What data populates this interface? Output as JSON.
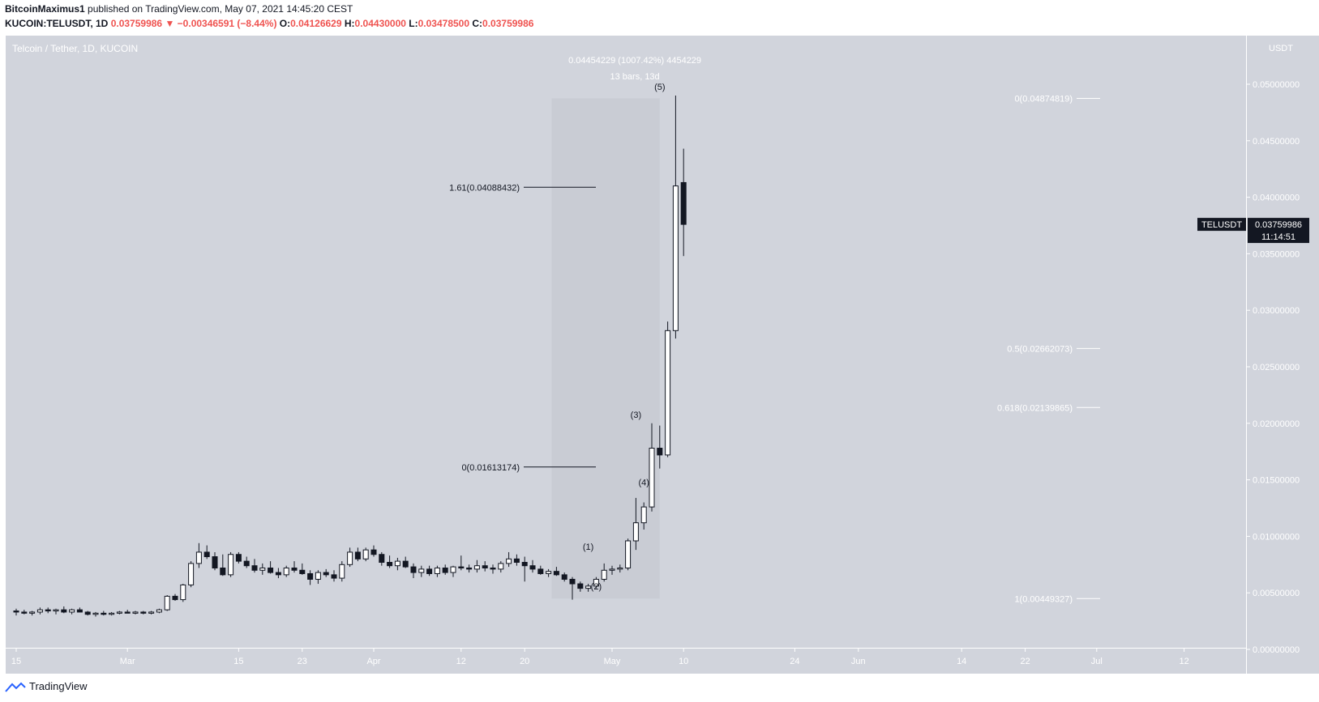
{
  "header": {
    "author": "BitcoinMaximus1",
    "published_text": "published on TradingView.com, May 07, 2021 14:45:20 CEST",
    "symbol_text": "KUCOIN:TELUSDT, 1D",
    "last": "0.03759986",
    "arrow": "▼",
    "change": "−0.00346591 (−8.44%)",
    "o_label": "O:",
    "o_value": "0.04126629",
    "h_label": "H:",
    "h_value": "0.04430000",
    "l_label": "L:",
    "l_value": "0.03478500",
    "c_label": "C:",
    "c_value": "0.03759986"
  },
  "footer": {
    "brand": "TradingView"
  },
  "colors": {
    "pane": "#d1d4dc",
    "up": "#ffffff",
    "down": "#131722",
    "label": "#131722",
    "fib_line": "#131722",
    "fib_line_right": "#ffffff",
    "range_box": "#c3c6ce"
  },
  "chart_data": {
    "type": "candlestick",
    "title": "Telcoin / Tether, 1D, KUCOIN",
    "y_axis_unit": "USDT",
    "ylim": [
      0,
      0.05
    ],
    "y_ticks": [
      "0.05000000",
      "0.04500000",
      "0.04000000",
      "0.03500000",
      "0.03000000",
      "0.02500000",
      "0.02000000",
      "0.01500000",
      "0.01000000",
      "0.00500000",
      "0.00000000"
    ],
    "x_ticks": [
      {
        "label": "15",
        "date": "2021-02-15"
      },
      {
        "label": "Mar",
        "date": "2021-03-01"
      },
      {
        "label": "15",
        "date": "2021-03-15"
      },
      {
        "label": "23",
        "date": "2021-03-23"
      },
      {
        "label": "Apr",
        "date": "2021-04-01"
      },
      {
        "label": "12",
        "date": "2021-04-12"
      },
      {
        "label": "20",
        "date": "2021-04-20"
      },
      {
        "label": "May",
        "date": "2021-05-01"
      },
      {
        "label": "10",
        "date": "2021-05-10"
      },
      {
        "label": "24",
        "date": "2021-05-24"
      },
      {
        "label": "Jun",
        "date": "2021-06-01"
      },
      {
        "label": "14",
        "date": "2021-06-14"
      },
      {
        "label": "22",
        "date": "2021-06-22"
      },
      {
        "label": "Jul",
        "date": "2021-07-01"
      },
      {
        "label": "12",
        "date": "2021-07-12"
      }
    ],
    "first_date": "2021-02-15",
    "candles": [
      [
        0.0034,
        0.0036,
        0.003,
        0.0033
      ],
      [
        0.0033,
        0.0035,
        0.0031,
        0.0032
      ],
      [
        0.0032,
        0.0034,
        0.003,
        0.0033
      ],
      [
        0.0033,
        0.0037,
        0.0031,
        0.0035
      ],
      [
        0.0035,
        0.0037,
        0.0032,
        0.0034
      ],
      [
        0.0034,
        0.0036,
        0.0031,
        0.0035
      ],
      [
        0.0035,
        0.0038,
        0.0032,
        0.0033
      ],
      [
        0.0033,
        0.0036,
        0.0031,
        0.0035
      ],
      [
        0.0035,
        0.0037,
        0.0033,
        0.0033
      ],
      [
        0.0033,
        0.0034,
        0.003,
        0.0031
      ],
      [
        0.0031,
        0.0033,
        0.0029,
        0.0032
      ],
      [
        0.0032,
        0.0034,
        0.003,
        0.0031
      ],
      [
        0.0031,
        0.0033,
        0.003,
        0.0032
      ],
      [
        0.0032,
        0.0034,
        0.0031,
        0.0033
      ],
      [
        0.0033,
        0.0035,
        0.0032,
        0.0032
      ],
      [
        0.0032,
        0.0034,
        0.0031,
        0.0033
      ],
      [
        0.0033,
        0.0034,
        0.0031,
        0.0032
      ],
      [
        0.0032,
        0.0034,
        0.0031,
        0.0033
      ],
      [
        0.0033,
        0.0036,
        0.0032,
        0.0035
      ],
      [
        0.0035,
        0.0048,
        0.0034,
        0.0047
      ],
      [
        0.0047,
        0.0049,
        0.0043,
        0.0044
      ],
      [
        0.0044,
        0.0058,
        0.0042,
        0.0057
      ],
      [
        0.0057,
        0.0078,
        0.0055,
        0.0076
      ],
      [
        0.0076,
        0.0094,
        0.0072,
        0.0086
      ],
      [
        0.0086,
        0.0092,
        0.008,
        0.0082
      ],
      [
        0.0082,
        0.0086,
        0.007,
        0.0072
      ],
      [
        0.0072,
        0.0084,
        0.0065,
        0.0066
      ],
      [
        0.0066,
        0.0086,
        0.0064,
        0.0084
      ],
      [
        0.0084,
        0.0086,
        0.0076,
        0.0078
      ],
      [
        0.0078,
        0.0082,
        0.0072,
        0.0074
      ],
      [
        0.0074,
        0.008,
        0.0068,
        0.007
      ],
      [
        0.007,
        0.0076,
        0.0066,
        0.0072
      ],
      [
        0.0072,
        0.0078,
        0.0067,
        0.0068
      ],
      [
        0.0068,
        0.0072,
        0.0063,
        0.0066
      ],
      [
        0.0066,
        0.0074,
        0.0064,
        0.0072
      ],
      [
        0.0072,
        0.0078,
        0.0068,
        0.007
      ],
      [
        0.007,
        0.0076,
        0.0066,
        0.0067
      ],
      [
        0.0067,
        0.007,
        0.0057,
        0.0062
      ],
      [
        0.0062,
        0.007,
        0.0058,
        0.0068
      ],
      [
        0.0068,
        0.0071,
        0.0064,
        0.0066
      ],
      [
        0.0066,
        0.007,
        0.006,
        0.0063
      ],
      [
        0.0063,
        0.0078,
        0.006,
        0.0075
      ],
      [
        0.0075,
        0.009,
        0.0073,
        0.0086
      ],
      [
        0.0086,
        0.009,
        0.0078,
        0.008
      ],
      [
        0.008,
        0.009,
        0.0078,
        0.0088
      ],
      [
        0.0088,
        0.0092,
        0.0082,
        0.0084
      ],
      [
        0.0084,
        0.0086,
        0.0074,
        0.0077
      ],
      [
        0.0077,
        0.0083,
        0.0072,
        0.0074
      ],
      [
        0.0074,
        0.0081,
        0.007,
        0.0078
      ],
      [
        0.0078,
        0.0082,
        0.0072,
        0.0073
      ],
      [
        0.0073,
        0.0076,
        0.0063,
        0.0068
      ],
      [
        0.0068,
        0.0074,
        0.0064,
        0.0071
      ],
      [
        0.0071,
        0.0074,
        0.0065,
        0.0067
      ],
      [
        0.0067,
        0.0074,
        0.0064,
        0.0072
      ],
      [
        0.0072,
        0.0075,
        0.0066,
        0.0068
      ],
      [
        0.0068,
        0.0074,
        0.0064,
        0.0073
      ],
      [
        0.0073,
        0.0083,
        0.007,
        0.0072
      ],
      [
        0.0072,
        0.0075,
        0.0068,
        0.0071
      ],
      [
        0.0071,
        0.0079,
        0.0068,
        0.0074
      ],
      [
        0.0074,
        0.0078,
        0.0069,
        0.0072
      ],
      [
        0.0072,
        0.0075,
        0.0067,
        0.0071
      ],
      [
        0.0071,
        0.0078,
        0.0068,
        0.0076
      ],
      [
        0.0076,
        0.0086,
        0.0073,
        0.008
      ],
      [
        0.008,
        0.0084,
        0.0074,
        0.0077
      ],
      [
        0.0077,
        0.0082,
        0.006,
        0.0074
      ],
      [
        0.0074,
        0.0079,
        0.0068,
        0.0071
      ],
      [
        0.0071,
        0.0074,
        0.0066,
        0.0067
      ],
      [
        0.0067,
        0.0071,
        0.0064,
        0.0069
      ],
      [
        0.0069,
        0.0073,
        0.0065,
        0.0066
      ],
      [
        0.0066,
        0.0068,
        0.006,
        0.0062
      ],
      [
        0.0062,
        0.0064,
        0.0044,
        0.0058
      ],
      [
        0.0058,
        0.006,
        0.0051,
        0.0054
      ],
      [
        0.0054,
        0.0058,
        0.0051,
        0.0056
      ],
      [
        0.0056,
        0.0064,
        0.0054,
        0.0062
      ],
      [
        0.0062,
        0.0076,
        0.006,
        0.007
      ],
      [
        0.007,
        0.0074,
        0.0066,
        0.0071
      ],
      [
        0.0071,
        0.0075,
        0.0068,
        0.0072
      ],
      [
        0.0072,
        0.0098,
        0.007,
        0.0096
      ],
      [
        0.0096,
        0.0134,
        0.0088,
        0.0112
      ],
      [
        0.0112,
        0.013,
        0.0106,
        0.0126
      ],
      [
        0.0126,
        0.02,
        0.0122,
        0.0178
      ],
      [
        0.0178,
        0.0198,
        0.016,
        0.0172
      ],
      [
        0.0172,
        0.029,
        0.017,
        0.0282
      ],
      [
        0.0282,
        0.049,
        0.0275,
        0.041
      ],
      [
        0.0413,
        0.0443,
        0.0348,
        0.0376
      ]
    ],
    "price_tag": {
      "symbol": "TELUSDT",
      "value": "0.03759986",
      "countdown": "11:14:51",
      "price": 0.03759986
    },
    "fib_left": [
      {
        "label": "1.61(0.04088432)",
        "price": 0.04088432
      },
      {
        "label": "0(0.01613174)",
        "price": 0.01613174
      }
    ],
    "fib_right": [
      {
        "label": "0(0.04874819)",
        "price": 0.04874819
      },
      {
        "label": "0.5(0.02662073)",
        "price": 0.02662073
      },
      {
        "label": "0.618(0.02139865)",
        "price": 0.02139865
      },
      {
        "label": "1(0.00449327)",
        "price": 0.00449327
      }
    ],
    "range": {
      "label_1": "0.04454229 (1007.42%) 4454229",
      "label_2": "13 bars, 13d",
      "start_date": "2021-04-24",
      "end_date": "2021-05-07",
      "low": 0.00449327,
      "high": 0.04874819
    },
    "waves": [
      {
        "label": "(1)",
        "date": "2021-04-28",
        "price": 0.0088
      },
      {
        "label": "(2)",
        "date": "2021-04-29",
        "price": 0.0053
      },
      {
        "label": "(3)",
        "date": "2021-05-04",
        "price": 0.0205
      },
      {
        "label": "(4)",
        "date": "2021-05-05",
        "price": 0.0145
      },
      {
        "label": "(5)",
        "date": "2021-05-07",
        "price": 0.0495
      }
    ]
  }
}
